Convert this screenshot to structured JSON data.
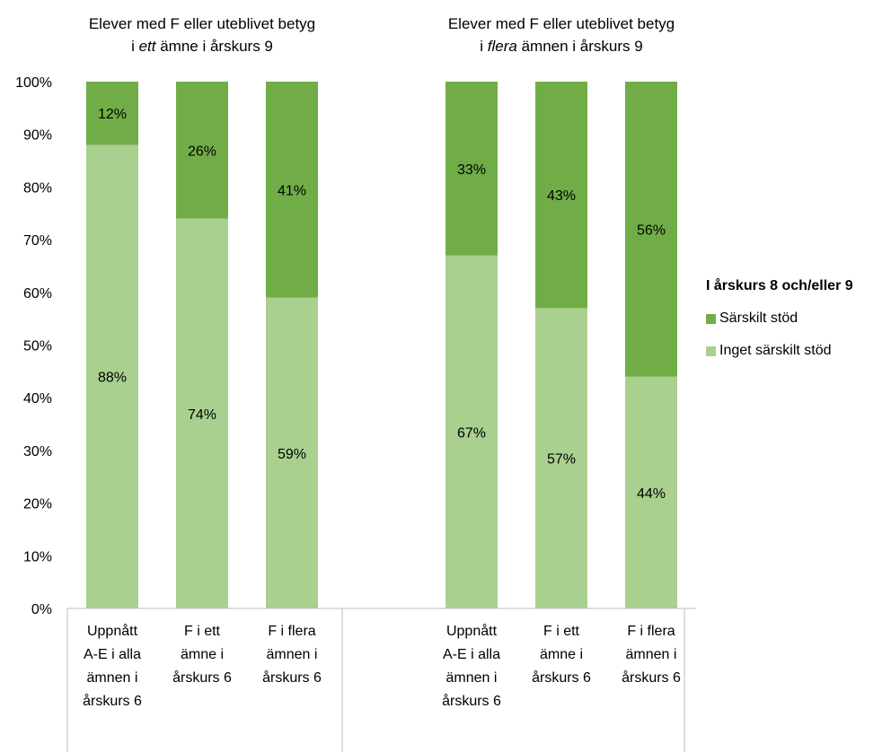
{
  "chart_data": {
    "type": "bar",
    "stacked": true,
    "orientation": "vertical",
    "groups": [
      {
        "title_parts": [
          {
            "text": "Elever med F eller uteblivet betyg",
            "italic": false,
            "newline": false
          },
          {
            "text": "i ",
            "italic": false,
            "newline": true
          },
          {
            "text": "ett",
            "italic": true,
            "newline": false
          },
          {
            "text": " ämne i årskurs 9",
            "italic": false,
            "newline": false
          }
        ]
      },
      {
        "title_parts": [
          {
            "text": "Elever med F eller uteblivet betyg",
            "italic": false,
            "newline": false
          },
          {
            "text": "i ",
            "italic": false,
            "newline": true
          },
          {
            "text": "flera",
            "italic": true,
            "newline": false
          },
          {
            "text": " ämnen i årskurs 9",
            "italic": false,
            "newline": false
          }
        ]
      }
    ],
    "categories": [
      "Uppnått A-E i alla ämnen i årskurs 6",
      "F i ett ämne i årskurs 6",
      "F i flera ämnen i årskurs 6",
      "Uppnått A-E i alla ämnen i årskurs 6",
      "F i ett ämne i årskurs 6",
      "F i flera ämnen i årskurs 6"
    ],
    "category_lines": [
      [
        "Uppnått",
        "A-E i alla",
        "ämnen i",
        "årskurs 6"
      ],
      [
        "F i ett",
        "ämne i",
        "årskurs 6"
      ],
      [
        "F i flera",
        "ämnen i",
        "årskurs 6"
      ],
      [
        "Uppnått",
        "A-E i alla",
        "ämnen i",
        "årskurs 6"
      ],
      [
        "F i ett",
        "ämne i",
        "årskurs 6"
      ],
      [
        "F i flera",
        "ämnen i",
        "årskurs 6"
      ]
    ],
    "category_group": [
      0,
      0,
      0,
      1,
      1,
      1
    ],
    "series": [
      {
        "name": "Inget särskilt stöd",
        "color": "#a9d08e",
        "values": [
          88,
          74,
          59,
          67,
          57,
          44
        ],
        "labels": [
          "88%",
          "74%",
          "59%",
          "67%",
          "57%",
          "44%"
        ]
      },
      {
        "name": "Särskilt stöd",
        "color": "#70ad47",
        "values": [
          12,
          26,
          41,
          33,
          43,
          56
        ],
        "labels": [
          "12%",
          "26%",
          "41%",
          "33%",
          "43%",
          "56%"
        ]
      }
    ],
    "y_ticks": [
      "0%",
      "10%",
      "20%",
      "30%",
      "40%",
      "50%",
      "60%",
      "70%",
      "80%",
      "90%",
      "100%"
    ],
    "ylim": [
      0,
      100
    ],
    "grid": false,
    "legend": {
      "title": "I årskurs 8 och/eller 9",
      "placement": "right",
      "order": [
        "Särskilt stöd",
        "Inget särskilt stöd"
      ]
    }
  }
}
